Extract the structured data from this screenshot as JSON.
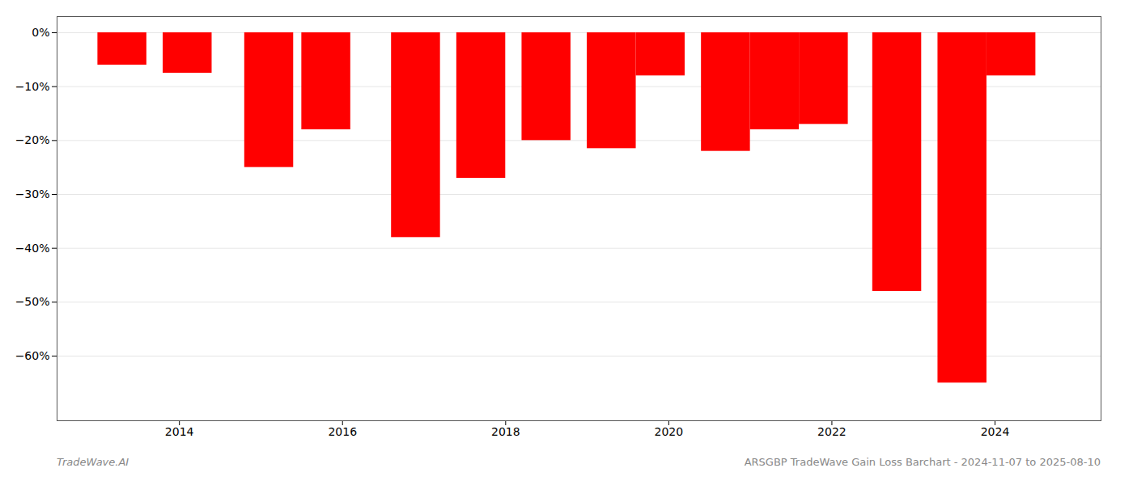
{
  "chart_data": {
    "type": "bar",
    "x": [
      2013.3,
      2014.1,
      2015.1,
      2015.8,
      2016.9,
      2017.7,
      2018.5,
      2019.3,
      2019.9,
      2020.7,
      2021.3,
      2021.9,
      2022.8,
      2023.6,
      2024.2
    ],
    "values": [
      -6.0,
      -7.5,
      -25.0,
      -18.0,
      -38.0,
      -27.0,
      -20.0,
      -21.5,
      -8.0,
      -22.0,
      -18.0,
      -17.0,
      -48.0,
      -65.0,
      -8.0
    ],
    "color": "#ff0000",
    "xlim": [
      2012.5,
      2025.3
    ],
    "xticks": [
      2014,
      2016,
      2018,
      2020,
      2022,
      2024
    ],
    "ylim": [
      -72,
      3
    ],
    "yticks": [
      {
        "value": 0,
        "label": "0%"
      },
      {
        "value": -10,
        "label": "−10%"
      },
      {
        "value": -20,
        "label": "−20%"
      },
      {
        "value": -30,
        "label": "−30%"
      },
      {
        "value": -40,
        "label": "−40%"
      },
      {
        "value": -50,
        "label": "−50%"
      },
      {
        "value": -60,
        "label": "−60%"
      }
    ],
    "grid": true,
    "annotations": [
      "TradeWave.AI",
      "ARSGBP TradeWave Gain Loss Barchart - 2024-11-07 to 2025-08-10"
    ]
  }
}
